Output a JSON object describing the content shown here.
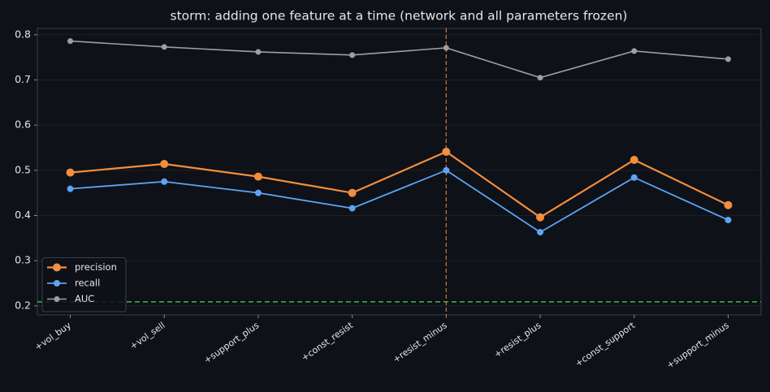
{
  "chart_data": {
    "type": "line",
    "title": "storm: adding one feature at a time (network and all parameters frozen)",
    "categories": [
      "+vol_buy",
      "+vol_sell",
      "+support_plus",
      "+const_resist",
      "+resist_minus",
      "+resist_plus",
      "+const_support",
      "+support_minus"
    ],
    "series": [
      {
        "name": "precision",
        "color": "#f28e3f",
        "values": [
          0.495,
          0.514,
          0.486,
          0.45,
          0.541,
          0.396,
          0.523,
          0.423
        ]
      },
      {
        "name": "recall",
        "color": "#5aa5f5",
        "values": [
          0.459,
          0.475,
          0.45,
          0.416,
          0.5,
          0.363,
          0.484,
          0.39
        ]
      },
      {
        "name": "AUC",
        "color": "#9aa0a6",
        "values": [
          0.786,
          0.773,
          0.762,
          0.755,
          0.771,
          0.705,
          0.764,
          0.746
        ]
      }
    ],
    "ylim": [
      0.18,
      0.814
    ],
    "yticks": [
      0.2,
      0.3,
      0.4,
      0.5,
      0.6,
      0.7,
      0.8
    ],
    "grid": true,
    "legend": "lower left",
    "baseline": 0.209,
    "baseline_color": "#3fb950",
    "marked_index": 4,
    "marked_color": "#c2703a"
  }
}
